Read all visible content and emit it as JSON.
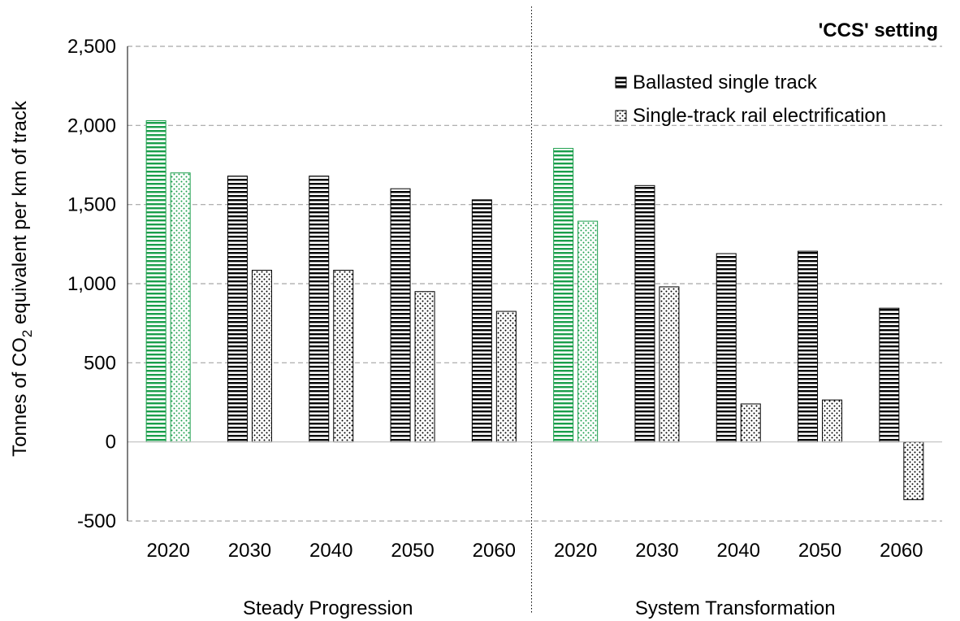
{
  "chart_data": {
    "type": "bar",
    "setting_label": "'CCS' setting",
    "ylabel": {
      "prefix": "Tonnes of CO",
      "subscript": "2",
      "suffix": " equivalent per km of track"
    },
    "xlabel": "",
    "ylim": [
      -500,
      2500
    ],
    "y_ticks": [
      -500,
      0,
      500,
      1000,
      1500,
      2000,
      2500
    ],
    "y_tick_labels": [
      "-500",
      "0",
      "500",
      "1,000",
      "1,500",
      "2,000",
      "2,500"
    ],
    "grid": "horizontal dashed",
    "legend": "top-right",
    "series": [
      {
        "name": "Ballasted single track",
        "pattern": "horizontal-lines",
        "color": "#000000"
      },
      {
        "name": "Single-track rail electrification",
        "pattern": "dots",
        "color": "#000000"
      }
    ],
    "highlight_color": "#1a9e4b",
    "highlight_category": "2020",
    "groups": [
      {
        "name": "Steady Progression",
        "categories": [
          "2020",
          "2030",
          "2040",
          "2050",
          "2060"
        ],
        "values": {
          "Ballasted single track": [
            2030,
            1680,
            1680,
            1600,
            1530
          ],
          "Single-track rail electrification": [
            1700,
            1085,
            1085,
            950,
            825
          ]
        }
      },
      {
        "name": "System Transformation",
        "categories": [
          "2020",
          "2030",
          "2040",
          "2050",
          "2060"
        ],
        "values": {
          "Ballasted single track": [
            1855,
            1620,
            1190,
            1205,
            845
          ],
          "Single-track rail electrification": [
            1395,
            980,
            240,
            265,
            -365
          ]
        }
      }
    ]
  }
}
